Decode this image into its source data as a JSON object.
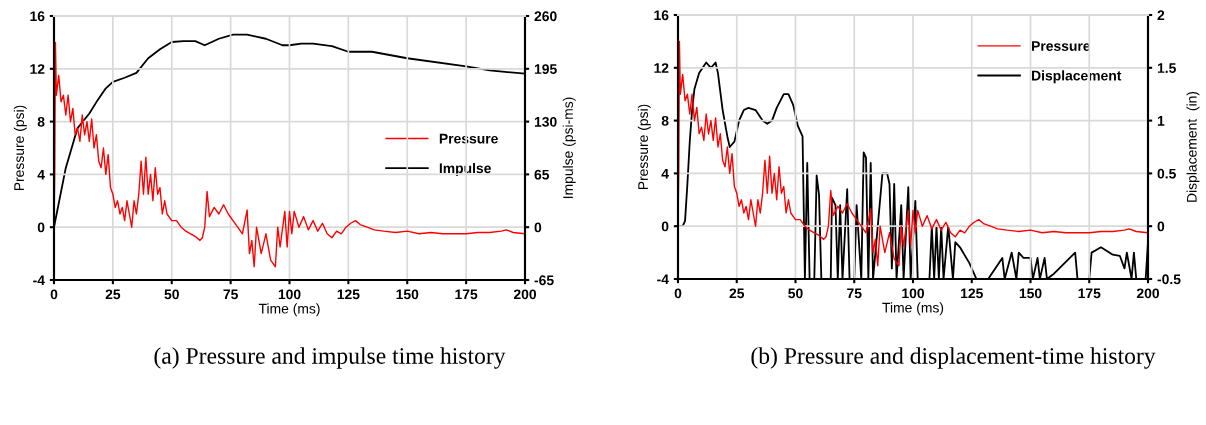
{
  "chart_data": [
    {
      "type": "line",
      "xlabel": "Time (ms)",
      "ylabel": "Pressure (psi)",
      "y2label": "Impulse (psi-ms)",
      "xlim": [
        0,
        200
      ],
      "xticks": [
        0,
        25,
        50,
        75,
        100,
        125,
        150,
        175,
        200
      ],
      "ylim": [
        -4,
        16
      ],
      "yticks": [
        -4,
        0,
        4,
        8,
        12,
        16
      ],
      "y2lim": [
        -65,
        260
      ],
      "y2ticks": [
        -65,
        0,
        65,
        130,
        195,
        260
      ],
      "grid": true,
      "legend": "right",
      "annotations": [
        "(a) Pressure and impulse time history"
      ],
      "series": [
        {
          "name": "Pressure",
          "color": "#ff0000",
          "x": [
            0,
            0.3,
            0.6,
            1,
            2,
            3,
            4,
            5,
            6,
            7,
            8,
            9,
            10,
            11,
            12,
            13,
            14,
            15,
            16,
            17,
            18,
            19,
            20,
            21,
            22,
            23,
            24,
            25,
            26,
            27,
            28,
            29,
            30,
            31,
            32,
            33,
            34,
            35,
            36,
            37,
            38,
            39,
            40,
            41,
            42,
            43,
            44,
            45,
            46,
            47,
            48,
            50,
            52,
            54,
            56,
            58,
            60,
            62,
            63,
            64,
            65,
            66,
            68,
            70,
            72,
            74,
            76,
            78,
            80,
            82,
            83,
            84,
            85,
            86,
            88,
            90,
            92,
            94,
            95,
            96,
            98,
            99,
            100,
            101,
            102,
            104,
            106,
            108,
            110,
            112,
            114,
            116,
            118,
            120,
            122,
            124,
            126,
            128,
            130,
            133,
            136,
            140,
            145,
            150,
            155,
            160,
            165,
            170,
            175,
            180,
            185,
            190,
            192,
            195,
            200
          ],
          "values": [
            0,
            4,
            14,
            10,
            11.5,
            9.5,
            10,
            8.5,
            10,
            8,
            9,
            7,
            7.5,
            6.5,
            8.5,
            7,
            8,
            6.5,
            8.2,
            6,
            7,
            5,
            4.5,
            6,
            4,
            5.5,
            3,
            2.5,
            1.5,
            2,
            1,
            1.5,
            0.5,
            2,
            1,
            0,
            2,
            1,
            2.5,
            5,
            2.5,
            5.3,
            2.5,
            4,
            2,
            4.5,
            2.5,
            3,
            1,
            2,
            1,
            0.5,
            0.5,
            0,
            -0.3,
            -0.5,
            -0.7,
            -1,
            -0.8,
            0,
            2.7,
            0.8,
            1.5,
            1,
            1.7,
            1,
            0.5,
            0,
            -0.5,
            1.3,
            -2,
            -1,
            -3,
            0,
            -2,
            -0.5,
            -2.5,
            -3,
            0,
            -1.5,
            1.2,
            -1.5,
            1.2,
            -0.5,
            1.2,
            0,
            0.8,
            -0.2,
            0.5,
            -0.3,
            0.3,
            -0.5,
            -0.8,
            -0.3,
            -0.5,
            0,
            0.3,
            0.5,
            0.2,
            0,
            -0.2,
            -0.3,
            -0.4,
            -0.3,
            -0.5,
            -0.4,
            -0.5,
            -0.5,
            -0.5,
            -0.4,
            -0.4,
            -0.3,
            -0.2,
            -0.4,
            -0.5
          ]
        },
        {
          "name": "Impulse",
          "color": "#000000",
          "axis": "y2",
          "x": [
            0,
            5,
            10,
            15,
            18,
            22,
            25,
            30,
            35,
            40,
            45,
            50,
            55,
            60,
            64,
            70,
            76,
            82,
            90,
            97,
            100,
            105,
            110,
            118,
            125,
            135,
            150,
            175,
            185,
            200
          ],
          "values": [
            0,
            73,
            122,
            140,
            154,
            171,
            179,
            184,
            190,
            208,
            219,
            228,
            229,
            229,
            224,
            232,
            237,
            237,
            232,
            224,
            224,
            226,
            226,
            223,
            216,
            216,
            208,
            198,
            193,
            189
          ]
        }
      ]
    },
    {
      "type": "line",
      "xlabel": "Time (ms)",
      "ylabel": "Pressure (psi)",
      "y2label": "Displacement  (in)",
      "xlim": [
        0,
        200
      ],
      "xticks": [
        0,
        25,
        50,
        75,
        100,
        125,
        150,
        175,
        200
      ],
      "ylim": [
        -4,
        16
      ],
      "yticks": [
        -4,
        0,
        4,
        8,
        12,
        16
      ],
      "y2lim": [
        -0.5,
        2
      ],
      "y2ticks": [
        -0.5,
        0,
        0.5,
        1,
        1.5,
        2
      ],
      "grid": true,
      "legend": "top right",
      "annotations": [
        "(b) Pressure and displacement-time history"
      ],
      "series": [
        {
          "name": "Pressure",
          "color": "#ff0000",
          "x": [
            0,
            0.3,
            0.6,
            1,
            2,
            3,
            4,
            5,
            6,
            7,
            8,
            9,
            10,
            11,
            12,
            13,
            14,
            15,
            16,
            17,
            18,
            19,
            20,
            21,
            22,
            23,
            24,
            25,
            26,
            27,
            28,
            29,
            30,
            31,
            32,
            33,
            34,
            35,
            36,
            37,
            38,
            39,
            40,
            41,
            42,
            43,
            44,
            45,
            46,
            47,
            48,
            50,
            52,
            54,
            56,
            58,
            60,
            62,
            63,
            64,
            65,
            66,
            68,
            70,
            72,
            74,
            76,
            78,
            80,
            82,
            83,
            84,
            85,
            86,
            88,
            90,
            92,
            94,
            95,
            96,
            98,
            99,
            100,
            101,
            102,
            104,
            106,
            108,
            110,
            112,
            114,
            116,
            118,
            120,
            122,
            124,
            126,
            128,
            130,
            133,
            136,
            140,
            145,
            150,
            155,
            160,
            165,
            170,
            175,
            180,
            185,
            190,
            192,
            195,
            200
          ],
          "values": [
            0,
            4,
            14,
            10,
            11.5,
            9.5,
            10,
            8.5,
            10,
            8,
            9,
            7,
            7.5,
            6.5,
            8.5,
            7,
            8,
            6.5,
            8.2,
            6,
            7,
            5,
            4.5,
            6,
            4,
            5.5,
            3,
            2.5,
            1.5,
            2,
            1,
            1.5,
            0.5,
            2,
            1,
            0,
            2,
            1,
            2.5,
            5,
            2.5,
            5.3,
            2.5,
            4,
            2,
            4.5,
            2.5,
            3,
            1,
            2,
            1,
            0.5,
            0.5,
            0,
            -0.3,
            -0.5,
            -0.7,
            -1,
            -0.8,
            0,
            2.7,
            0.8,
            1.5,
            1,
            1.7,
            1,
            0.5,
            0,
            -0.5,
            1.3,
            -2,
            -1,
            -3,
            0,
            -2,
            -0.5,
            -2.5,
            -3,
            0,
            -1.5,
            1.2,
            -1.5,
            1.2,
            -0.5,
            1.2,
            0,
            0.8,
            -0.2,
            0.5,
            -0.3,
            0.3,
            -0.5,
            -0.8,
            -0.3,
            -0.5,
            0,
            0.3,
            0.5,
            0.2,
            0,
            -0.2,
            -0.3,
            -0.4,
            -0.3,
            -0.5,
            -0.4,
            -0.5,
            -0.5,
            -0.5,
            -0.4,
            -0.4,
            -0.3,
            -0.2,
            -0.4,
            -0.5
          ]
        },
        {
          "name": "Displacement",
          "color": "#000000",
          "axis": "y2",
          "x": [
            0,
            2,
            3,
            4,
            5,
            6,
            7,
            9,
            12,
            14,
            16,
            17,
            19,
            21,
            22,
            24,
            26,
            28,
            30,
            33,
            36,
            38,
            40,
            42,
            45,
            47,
            49,
            51,
            53,
            54,
            55,
            56,
            58,
            59,
            60,
            61,
            65,
            65.5,
            67,
            68,
            69,
            70,
            72,
            73,
            75,
            76,
            78,
            79,
            80,
            81,
            82,
            83,
            87,
            89,
            90,
            91,
            92,
            93,
            95,
            96,
            98,
            99,
            101,
            102,
            107,
            108,
            109,
            110,
            111,
            112,
            113,
            115,
            117,
            118,
            120,
            124,
            127,
            132,
            138,
            139,
            142,
            144,
            145,
            147,
            150,
            151,
            153,
            154,
            156,
            157,
            160,
            169,
            170,
            175,
            176,
            180,
            185,
            188,
            190,
            191,
            193,
            194,
            195,
            199,
            200
          ],
          "values": [
            0,
            0,
            0.05,
            0.4,
            0.8,
            1.1,
            1.3,
            1.45,
            1.55,
            1.5,
            1.55,
            1.45,
            1.1,
            0.85,
            0.75,
            0.8,
            1.0,
            1.1,
            1.12,
            1.1,
            1.0,
            0.97,
            1.0,
            1.12,
            1.25,
            1.25,
            1.15,
            0.95,
            0.85,
            -0.5,
            0.6,
            -0.5,
            -0.5,
            0.48,
            0.3,
            -0.5,
            -0.5,
            0.27,
            0.2,
            -0.5,
            0.2,
            -0.5,
            0.35,
            -0.5,
            -0.5,
            0.2,
            -0.5,
            0.7,
            0.65,
            -0.5,
            0.6,
            -0.5,
            0.5,
            0.5,
            0.4,
            -0.4,
            0.4,
            -0.5,
            0.2,
            -0.5,
            0.37,
            -0.5,
            0.24,
            -0.5,
            -0.5,
            0,
            -0.5,
            0,
            -0.5,
            0,
            -0.5,
            0,
            -0.5,
            -0.15,
            -0.2,
            -0.35,
            -0.5,
            -0.5,
            -0.3,
            -0.5,
            -0.25,
            -0.5,
            -0.25,
            -0.3,
            -0.3,
            -0.5,
            -0.3,
            -0.5,
            -0.3,
            -0.5,
            -0.45,
            -0.25,
            -0.5,
            -0.5,
            -0.25,
            -0.2,
            -0.27,
            -0.28,
            -0.4,
            -0.25,
            -0.5,
            -0.25,
            -0.5,
            -0.5,
            -0.15
          ]
        }
      ]
    }
  ]
}
